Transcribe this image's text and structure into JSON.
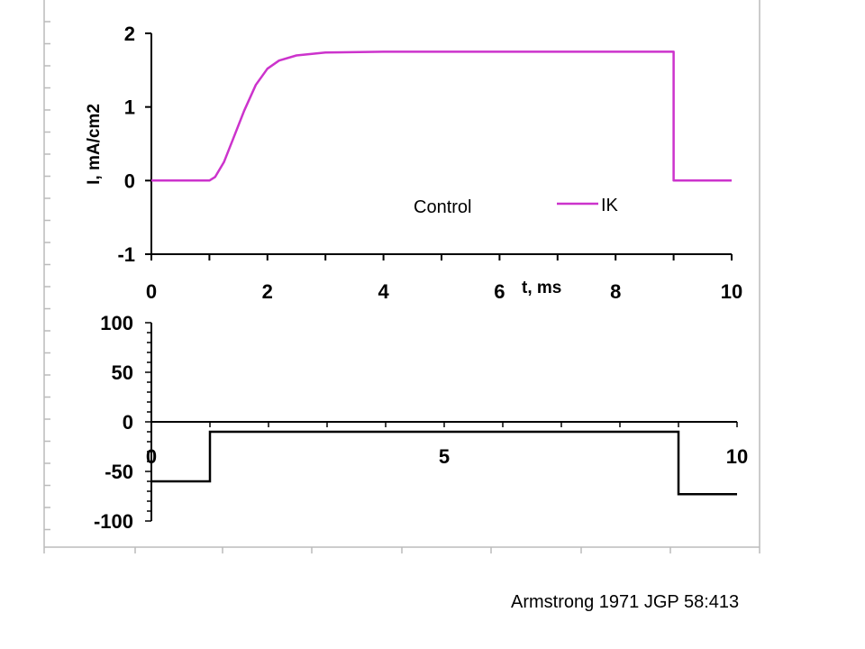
{
  "chart_data": [
    {
      "type": "line",
      "ylabel": "I, mA/cm2",
      "xlabel": "t, ms",
      "xlim": [
        0,
        10
      ],
      "ylim": [
        -1,
        2
      ],
      "xticks": [
        "0",
        "2",
        "4",
        "6",
        "8",
        "10"
      ],
      "yticks": [
        "-1",
        "0",
        "1",
        "2"
      ],
      "annotation": "Control",
      "series": [
        {
          "name": "IK",
          "color": "#cc33cc",
          "points": [
            [
              0,
              0
            ],
            [
              1,
              0
            ],
            [
              1.1,
              0.05
            ],
            [
              1.25,
              0.25
            ],
            [
              1.4,
              0.55
            ],
            [
              1.6,
              0.95
            ],
            [
              1.8,
              1.3
            ],
            [
              2.0,
              1.52
            ],
            [
              2.2,
              1.63
            ],
            [
              2.5,
              1.7
            ],
            [
              3.0,
              1.74
            ],
            [
              4.0,
              1.75
            ],
            [
              9.0,
              1.75
            ],
            [
              9.0,
              0
            ],
            [
              10,
              0
            ]
          ]
        }
      ],
      "legend": "right"
    },
    {
      "type": "line",
      "xlim": [
        0,
        10
      ],
      "ylim": [
        -100,
        100
      ],
      "xticks": [
        "0",
        "5",
        "10"
      ],
      "yticks": [
        "100",
        "50",
        "0",
        "-50",
        "-100"
      ],
      "series": [
        {
          "color": "#000000",
          "points": [
            [
              0,
              -60
            ],
            [
              1,
              -60
            ],
            [
              1,
              -10
            ],
            [
              9,
              -10
            ],
            [
              9,
              -73
            ],
            [
              10,
              -73
            ]
          ]
        }
      ]
    }
  ],
  "caption": "Armstrong 1971 JGP 58:413"
}
